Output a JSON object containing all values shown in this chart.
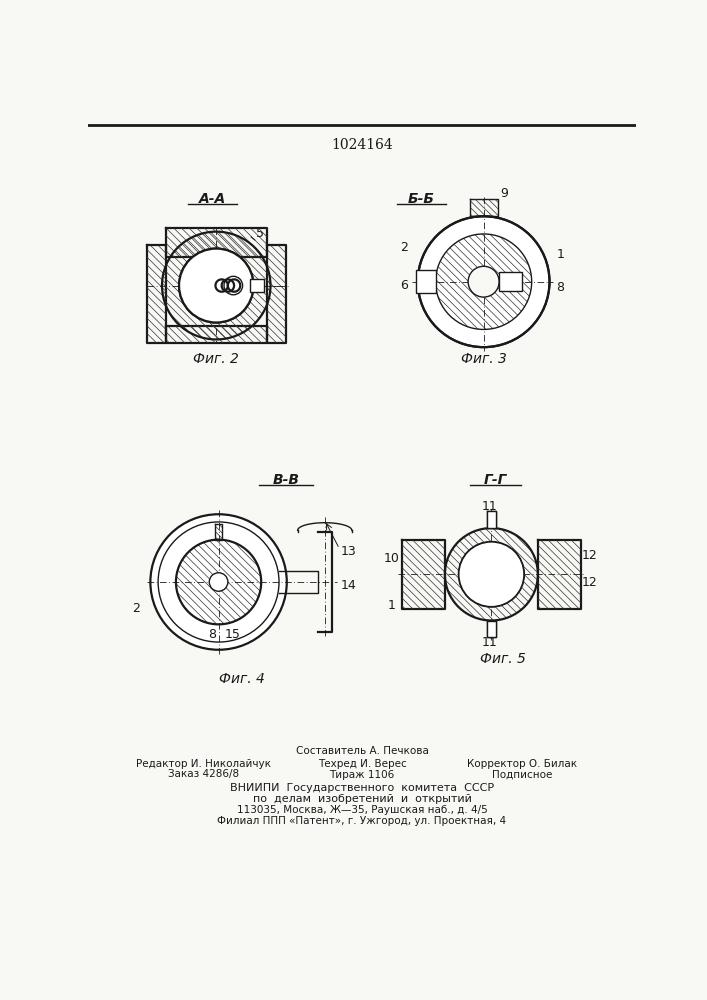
{
  "patent_number": "1024164",
  "background_color": "#f8f8f5",
  "line_color": "#1a1a1a",
  "fig2_label": "А-А",
  "fig3_label": "Б-Б",
  "fig4_label": "В-В",
  "fig5_label": "Г-Г",
  "fig2_caption": "Фиг. 2",
  "fig3_caption": "Фиг. 3",
  "fig4_caption": "Фиг. 4",
  "fig5_caption": "Фиг. 5",
  "footer_line1": "Составитель А. Печкова",
  "footer_line2_left": "Редактор И. Николайчук",
  "footer_line2_mid": "Техред И. Верес",
  "footer_line2_right": "Корректор О. Билак",
  "footer_line3_left": "Заказ 4286/8",
  "footer_line3_mid": "Тираж 1106",
  "footer_line3_right": "Подписное",
  "footer_line4": "ВНИИПИ  Государственного  комитета  СССР",
  "footer_line5": "по  делам  изобретений  и  открытий",
  "footer_line6": "113035, Москва, Ж—35, Раушская наб., д. 4/5",
  "footer_line7": "Филиал ППП «Патент», г. Ужгород, ул. Проектная, 4"
}
